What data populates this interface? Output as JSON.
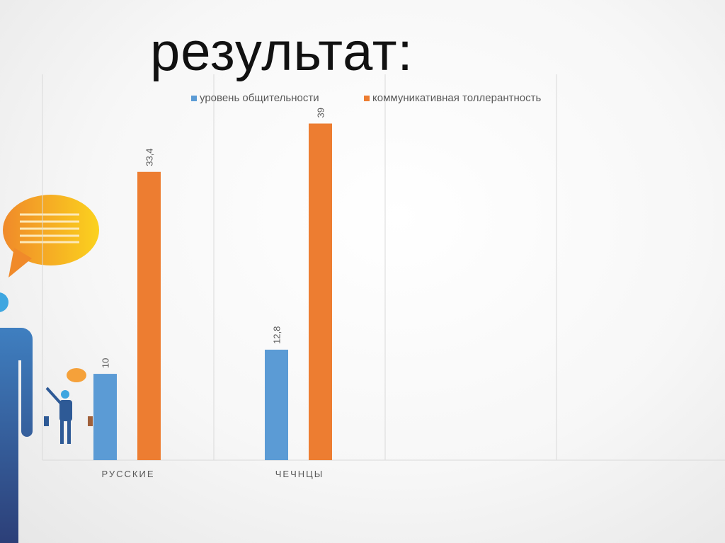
{
  "slide": {
    "title": "результат:"
  },
  "chart_data": {
    "type": "bar",
    "categories": [
      "РУССКИЕ",
      "ЧЕЧНЦЫ",
      "",
      ""
    ],
    "series": [
      {
        "name": "уровень общительности",
        "color": "#5b9bd5",
        "values": [
          10,
          12.8,
          null,
          null
        ],
        "labels": [
          "10",
          "12,8",
          "",
          ""
        ]
      },
      {
        "name": "коммуникативная толлерантность",
        "color": "#ed7d31",
        "values": [
          33.4,
          39,
          null,
          null
        ],
        "labels": [
          "33,4",
          "39",
          "",
          ""
        ]
      }
    ],
    "ylim": [
      0,
      44.7
    ],
    "grid": "vertical category separators",
    "legend_position": "top"
  }
}
